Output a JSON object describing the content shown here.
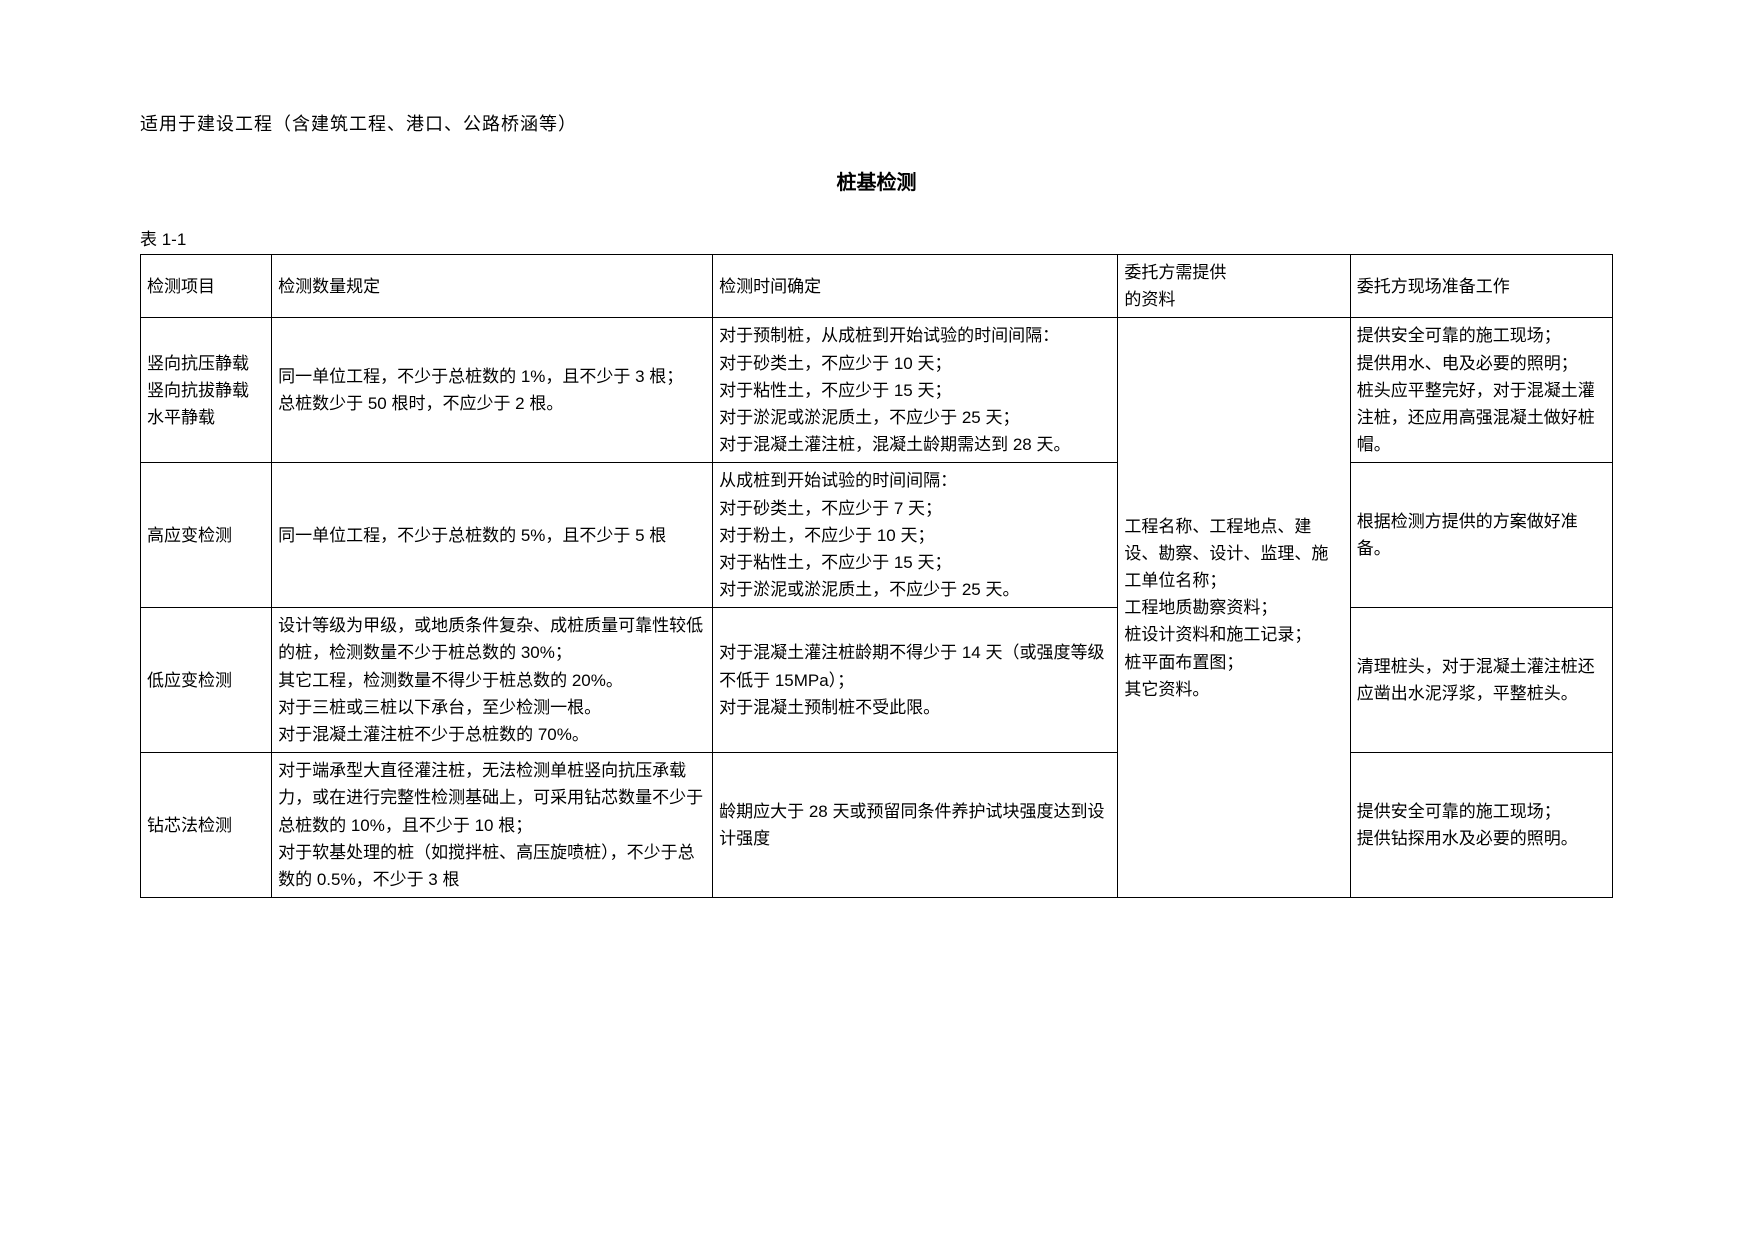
{
  "intro": "适用于建设工程（含建筑工程、港口、公路桥涵等）",
  "title": "桩基检测",
  "table_label": "表 1-1",
  "headers": {
    "c1": "检测项目",
    "c2": "检测数量规定",
    "c3": "检测时间确定",
    "c4": "委托方需提供\n的资料",
    "c5": "委托方现场准备工作"
  },
  "shared_col4": "工程名称、工程地点、建设、勘察、设计、监理、施工单位名称；\n工程地质勘察资料；\n桩设计资料和施工记录；\n桩平面布置图；\n其它资料。",
  "rows": [
    {
      "c1": "竖向抗压静载\n竖向抗拔静载\n水平静载",
      "c2": "同一单位工程，不少于总桩数的 1%，且不少于 3 根；\n总桩数少于 50 根时，不应少于 2 根。",
      "c3": "对于预制桩，从成桩到开始试验的时间间隔：\n对于砂类土，不应少于 10 天；\n对于粘性土，不应少于 15 天；\n对于淤泥或淤泥质土，不应少于 25 天；\n对于混凝土灌注桩，混凝土龄期需达到 28 天。",
      "c5": "提供安全可靠的施工现场；\n提供用水、电及必要的照明；\n桩头应平整完好，对于混凝土灌注桩，还应用高强混凝土做好桩帽。"
    },
    {
      "c1": "高应变检测",
      "c2": "同一单位工程，不少于总桩数的 5%，且不少于 5 根",
      "c3": "从成桩到开始试验的时间间隔：\n对于砂类土，不应少于 7 天；\n对于粉土，不应少于 10 天；\n对于粘性土，不应少于 15 天；\n对于淤泥或淤泥质土，不应少于 25 天。",
      "c5": "根据检测方提供的方案做好准备。"
    },
    {
      "c1": "低应变检测",
      "c2": "设计等级为甲级，或地质条件复杂、成桩质量可靠性较低的桩，检测数量不少于桩总数的 30%；\n其它工程，检测数量不得少于桩总数的 20%。\n对于三桩或三桩以下承台，至少检测一根。\n对于混凝土灌注桩不少于总桩数的 70%。",
      "c3": "对于混凝土灌注桩龄期不得少于 14 天（或强度等级不低于 15MPa）；\n对于混凝土预制桩不受此限。",
      "c5": "清理桩头，对于混凝土灌注桩还应凿出水泥浮浆，平整桩头。"
    },
    {
      "c1": "钻芯法检测",
      "c2": "对于端承型大直径灌注桩，无法检测单桩竖向抗压承载力，或在进行完整性检测基础上，可采用钻芯数量不少于总桩数的 10%，且不少于 10 根；\n对于软基处理的桩（如搅拌桩、高压旋喷桩），不少于总数的 0.5%，不少于 3 根",
      "c3": "龄期应大于 28 天或预留同条件养护试块强度达到设计强度",
      "c5": "提供安全可靠的施工现场；\n提供钻探用水及必要的照明。"
    }
  ]
}
